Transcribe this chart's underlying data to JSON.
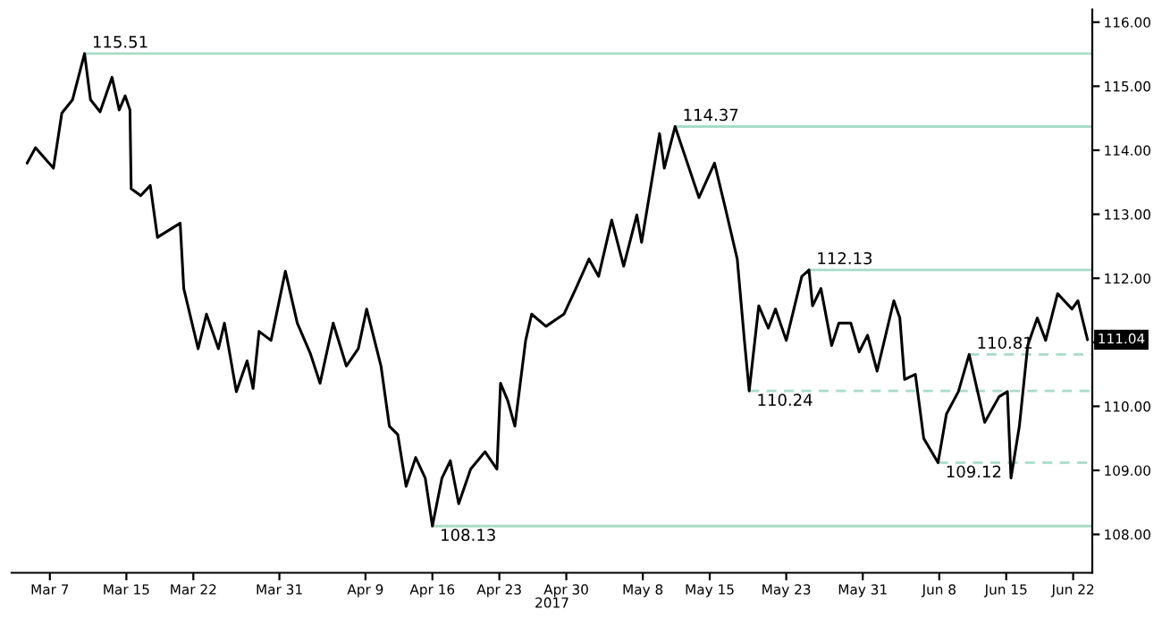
{
  "chart_data": {
    "type": "line",
    "xlabel": "2017",
    "x": [
      "2017-03-04T15:00",
      "2017-03-05T12:00",
      "2017-03-07T09:00",
      "2017-03-08T06:00",
      "2017-03-09T09:00",
      "2017-03-10T15:00",
      "2017-03-11T06:00",
      "2017-03-12T06:00",
      "2017-03-13T12:00",
      "2017-03-14T06:00",
      "2017-03-14T21:00",
      "2017-03-15T09:00",
      "2017-03-15T12:00",
      "2017-03-16T12:00",
      "2017-03-17T12:00",
      "2017-03-18T06:00",
      "2017-03-19T18:00",
      "2017-03-20T15:00",
      "2017-03-21T00:00",
      "2017-03-22T12:00",
      "2017-03-23T09:00",
      "2017-03-24T15:00",
      "2017-03-25T06:00",
      "2017-03-26T12:00",
      "2017-03-27T15:00",
      "2017-03-28T06:00",
      "2017-03-28T21:00",
      "2017-03-30T03:00",
      "2017-03-31T15:00",
      "2017-04-01T21:00",
      "2017-04-03T06:00",
      "2017-04-04T06:00",
      "2017-04-05T15:00",
      "2017-04-07T00:00",
      "2017-04-08T06:00",
      "2017-04-09T03:00",
      "2017-04-10T15:00",
      "2017-04-11T12:00",
      "2017-04-12T09:00",
      "2017-04-13T06:00",
      "2017-04-14T06:00",
      "2017-04-15T06:00",
      "2017-04-16T00:00",
      "2017-04-17T00:00",
      "2017-04-17T21:00",
      "2017-04-18T18:00",
      "2017-04-20T00:00",
      "2017-04-21T12:00",
      "2017-04-22T18:00",
      "2017-04-23T03:00",
      "2017-04-23T21:00",
      "2017-04-24T15:00",
      "2017-04-25T18:00",
      "2017-04-26T09:00",
      "2017-04-27T21:00",
      "2017-04-29T18:00",
      "2017-05-01T00:00",
      "2017-05-02T09:00",
      "2017-05-03T09:00",
      "2017-05-04T18:00",
      "2017-05-06T00:00",
      "2017-05-07T09:00",
      "2017-05-07T21:00",
      "2017-05-09T18:00",
      "2017-05-10T06:00",
      "2017-05-11T09:00",
      "2017-05-13T21:00",
      "2017-05-15T12:00",
      "2017-05-16T15:00",
      "2017-05-17T21:00",
      "2017-05-18T15:00",
      "2017-05-19T03:00",
      "2017-05-20T03:00",
      "2017-05-21T03:00",
      "2017-05-21T21:00",
      "2017-05-23T00:00",
      "2017-05-24T15:00",
      "2017-05-25T09:00",
      "2017-05-25T18:00",
      "2017-05-26T15:00",
      "2017-05-27T18:00",
      "2017-05-28T12:00",
      "2017-05-29T18:00",
      "2017-05-30T15:00",
      "2017-05-31T12:00",
      "2017-06-01T12:00",
      "2017-06-03T06:00",
      "2017-06-03T21:00",
      "2017-06-04T09:00",
      "2017-06-05T12:00",
      "2017-06-06T09:00",
      "2017-06-07T21:00",
      "2017-06-08T18:00",
      "2017-06-10T00:00",
      "2017-06-11T03:00",
      "2017-06-12T18:00",
      "2017-06-14T06:00",
      "2017-06-15T03:00",
      "2017-06-15T12:00",
      "2017-06-16T09:00",
      "2017-06-17T06:00",
      "2017-06-18T06:00",
      "2017-06-19T03:00",
      "2017-06-20T09:00",
      "2017-06-21T21:00",
      "2017-06-22T12:00",
      "2017-06-23T12:00"
    ],
    "series": [
      {
        "color": "#000000",
        "values": [
          113.8,
          114.04,
          113.72,
          114.58,
          114.79,
          115.51,
          114.79,
          114.6,
          115.14,
          114.63,
          114.85,
          114.63,
          113.4,
          113.29,
          113.45,
          112.64,
          112.78,
          112.86,
          111.84,
          110.9,
          111.44,
          110.9,
          111.3,
          110.23,
          110.71,
          110.28,
          111.17,
          111.03,
          112.11,
          111.3,
          110.82,
          110.36,
          111.3,
          110.63,
          110.9,
          111.52,
          110.63,
          109.69,
          109.56,
          108.75,
          109.2,
          108.88,
          108.13,
          108.88,
          109.15,
          108.48,
          109.02,
          109.29,
          109.02,
          110.36,
          110.09,
          109.69,
          111.03,
          111.44,
          111.25,
          111.44,
          111.84,
          112.3,
          112.03,
          112.91,
          112.19,
          112.99,
          112.56,
          114.26,
          113.72,
          114.37,
          113.26,
          113.8,
          113.1,
          112.3,
          111.03,
          110.24,
          111.57,
          111.22,
          111.52,
          111.03,
          112.03,
          112.13,
          111.57,
          111.84,
          110.95,
          111.3,
          111.3,
          110.85,
          111.11,
          110.55,
          111.65,
          111.38,
          110.42,
          110.5,
          109.5,
          109.12,
          109.88,
          110.23,
          110.81,
          109.75,
          110.15,
          110.23,
          108.88,
          109.69,
          110.95,
          111.38,
          111.03,
          111.76,
          111.52,
          111.65,
          111.04
        ]
      }
    ],
    "xlim": [
      "2017-03-03",
      "2017-06-24"
    ],
    "xticks": [
      {
        "value": "2017-03-07",
        "label": "Mar 7"
      },
      {
        "value": "2017-03-15",
        "label": "Mar 15"
      },
      {
        "value": "2017-03-22",
        "label": "Mar 22"
      },
      {
        "value": "2017-03-31",
        "label": "Mar 31"
      },
      {
        "value": "2017-04-09",
        "label": "Apr 9"
      },
      {
        "value": "2017-04-16",
        "label": "Apr 16"
      },
      {
        "value": "2017-04-23",
        "label": "Apr 23"
      },
      {
        "value": "2017-04-30",
        "label": "Apr 30"
      },
      {
        "value": "2017-05-08",
        "label": "May 8"
      },
      {
        "value": "2017-05-15",
        "label": "May 15"
      },
      {
        "value": "2017-05-23",
        "label": "May 23"
      },
      {
        "value": "2017-05-31",
        "label": "May 31"
      },
      {
        "value": "2017-06-08",
        "label": "Jun 8"
      },
      {
        "value": "2017-06-15",
        "label": "Jun 15"
      },
      {
        "value": "2017-06-22",
        "label": "Jun 22"
      }
    ],
    "ylim": [
      107.4,
      116.2
    ],
    "yticks": [
      {
        "value": 108,
        "label": "108.00"
      },
      {
        "value": 109,
        "label": "109.00"
      },
      {
        "value": 110,
        "label": "110.00"
      },
      {
        "value": 111,
        "label": null
      },
      {
        "value": 112,
        "label": "112.00"
      },
      {
        "value": 113,
        "label": "113.00"
      },
      {
        "value": 114,
        "label": "114.00"
      },
      {
        "value": 115,
        "label": "115.00"
      },
      {
        "value": 116,
        "label": "116.00"
      }
    ],
    "ref_lines": [
      {
        "axis": "y",
        "value": 115.51,
        "label": "115.51",
        "color": "#a8dcc8",
        "line_style": "solid"
      },
      {
        "axis": "y",
        "value": 114.37,
        "label": "114.37",
        "color": "#a8dcc8",
        "line_style": "solid"
      },
      {
        "axis": "y",
        "value": 112.13,
        "label": "112.13",
        "color": "#a8dcc8",
        "line_style": "solid"
      },
      {
        "axis": "y",
        "value": 108.13,
        "label": "108.13",
        "color": "#a8dcc8",
        "line_style": "solid"
      },
      {
        "axis": "y",
        "value": 110.24,
        "label": "110.24",
        "color": "#a8dcc8",
        "line_style": "dashed"
      },
      {
        "axis": "y",
        "value": 109.12,
        "label": "109.12",
        "color": "#a8dcc8",
        "line_style": "dashed"
      },
      {
        "axis": "y",
        "value": 110.81,
        "label": "110.81",
        "color": "#a8dcc8",
        "line_style": "dashed"
      }
    ],
    "annotations": [
      {
        "text": "111.04",
        "x": "2017-06-23T12:00",
        "y": 111.04
      }
    ],
    "grid": false
  }
}
